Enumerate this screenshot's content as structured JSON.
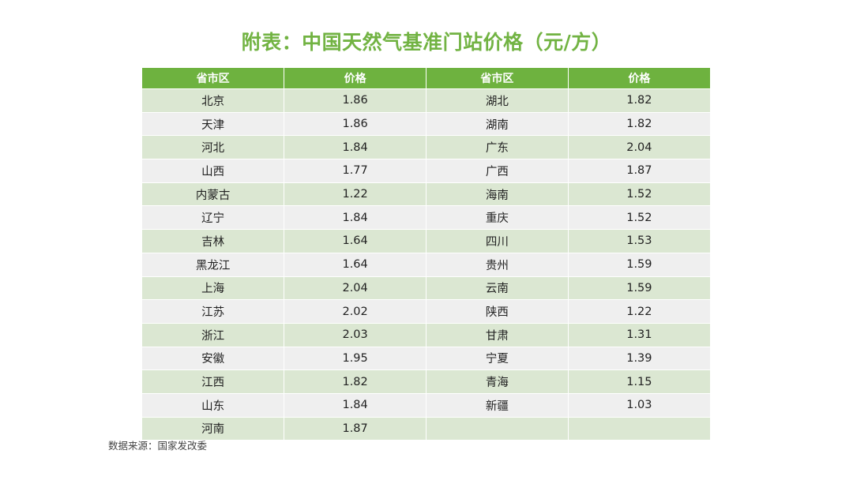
{
  "title": "附表：中国天然气基准门站价格（元/方）",
  "headers": [
    "省市区",
    "价格",
    "省市区",
    "价格"
  ],
  "rows": [
    [
      "北京",
      "1.86",
      "湖北",
      "1.82"
    ],
    [
      "天津",
      "1.86",
      "湖南",
      "1.82"
    ],
    [
      "河北",
      "1.84",
      "广东",
      "2.04"
    ],
    [
      "山西",
      "1.77",
      "广西",
      "1.87"
    ],
    [
      "内蒙古",
      "1.22",
      "海南",
      "1.52"
    ],
    [
      "辽宁",
      "1.84",
      "重庆",
      "1.52"
    ],
    [
      "吉林",
      "1.64",
      "四川",
      "1.53"
    ],
    [
      "黑龙江",
      "1.64",
      "贵州",
      "1.59"
    ],
    [
      "上海",
      "2.04",
      "云南",
      "1.59"
    ],
    [
      "江苏",
      "2.02",
      "陕西",
      "1.22"
    ],
    [
      "浙江",
      "2.03",
      "甘肃",
      "1.31"
    ],
    [
      "安徽",
      "1.95",
      "宁夏",
      "1.39"
    ],
    [
      "江西",
      "1.82",
      "青海",
      "1.15"
    ],
    [
      "山东",
      "1.84",
      "新疆",
      "1.03"
    ],
    [
      "河南",
      "1.87",
      "",
      ""
    ]
  ],
  "source": "数据来源：国家发改委",
  "colors": {
    "accent": "#6eb23f",
    "title": "#72b343",
    "row_odd": "#dbe7d2",
    "row_even": "#efefef"
  }
}
